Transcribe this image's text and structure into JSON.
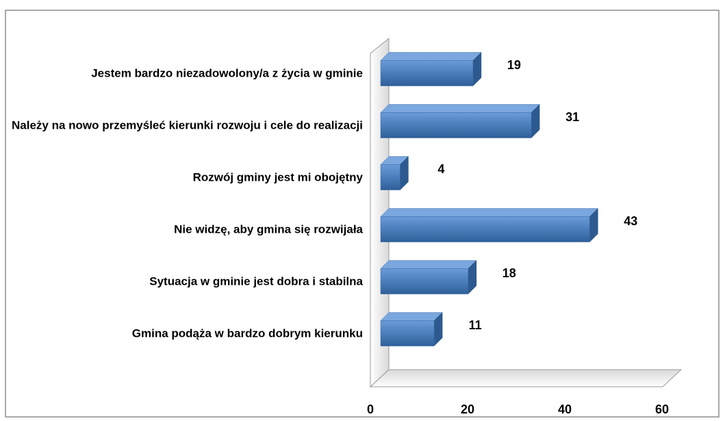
{
  "chart_data": {
    "type": "bar3d_horizontal",
    "categories": [
      "Jestem bardzo niezadowolony/a z życia w gminie",
      "Należy na nowo przemyśleć kierunki rozwoju i cele do realizacji",
      "Rozwój gminy jest mi obojętny",
      "Nie widzę, aby gmina się rozwijała",
      "Sytuacja w gminie jest dobra i stabilna",
      "Gmina podąża w bardzo dobrym kierunku"
    ],
    "values": [
      19,
      31,
      4,
      43,
      18,
      11
    ],
    "color": "#4a7ebb",
    "xlim": [
      0,
      60
    ],
    "xticks": [
      0,
      20,
      40,
      60
    ]
  }
}
